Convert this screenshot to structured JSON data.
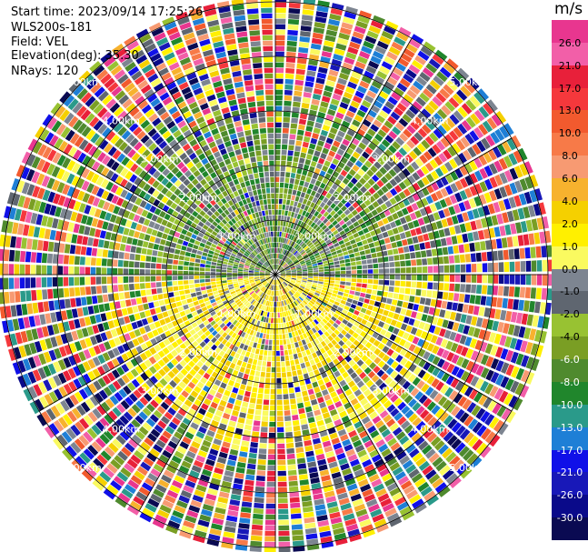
{
  "info": {
    "start_time": "Start time: 2023/09/14 17:25:26",
    "instrument": "WLS200s-181",
    "field": "Field: VEL",
    "elevation": "Elevation(deg): 35.30",
    "nrays": "NRays: 120"
  },
  "colorbar": {
    "unit": "m/s",
    "ticks": [
      "26.0",
      "21.0",
      "17.0",
      "13.0",
      "10.0",
      "8.0",
      "6.0",
      "4.0",
      "2.0",
      "1.0",
      "0.0",
      "-1.0",
      "-2.0",
      "-4.0",
      "-6.0",
      "-8.0",
      "-10.0",
      "-13.0",
      "-17.0",
      "-21.0",
      "-26.0",
      "-30.0"
    ],
    "colors": [
      "#e8368f",
      "#f25fa8",
      "#e8203a",
      "#f5383c",
      "#f25a2e",
      "#f77a48",
      "#f79a72",
      "#f7b22e",
      "#f5d000",
      "#fff000",
      "#fafa60",
      "#7d8591",
      "#5f6670",
      "#98c232",
      "#7a9e24",
      "#4f8a2e",
      "#20862c",
      "#2a9a8a",
      "#1e7fd6",
      "#1010e8",
      "#1818b8",
      "#0a0a8a",
      "#0a0a52"
    ]
  },
  "rings": [
    "1.00km",
    "2.00km",
    "3.00km",
    "4.00km",
    "5.00km"
  ]
}
